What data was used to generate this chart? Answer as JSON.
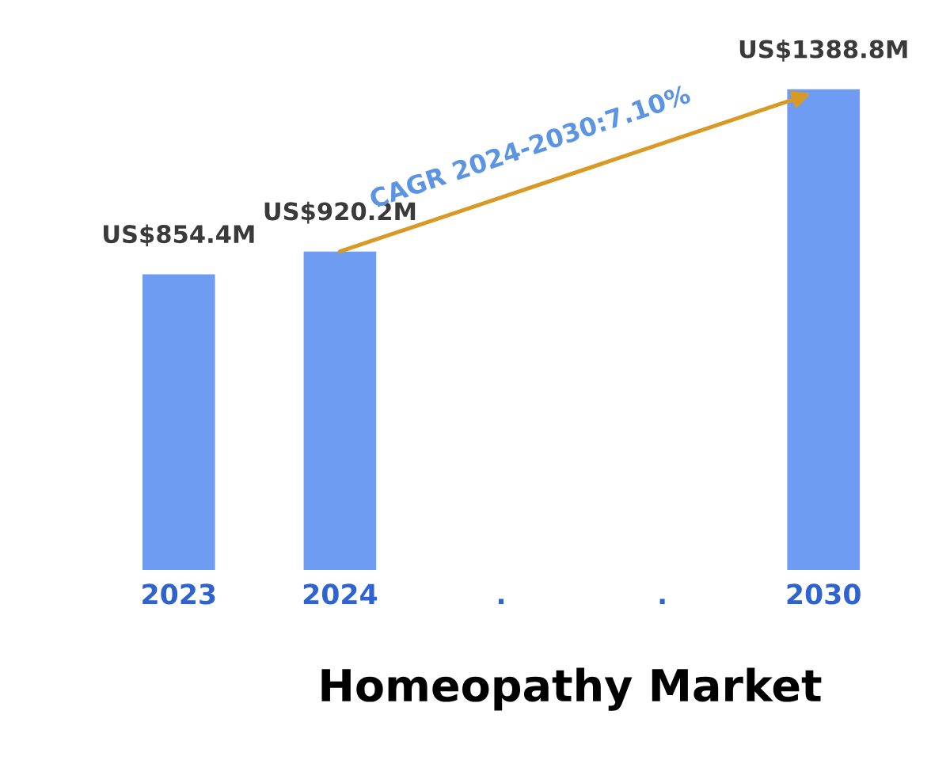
{
  "chart_data": {
    "type": "bar",
    "title": "Homeopathy Market",
    "categories": [
      "2023",
      "2024",
      ".",
      ".",
      "2030"
    ],
    "values": [
      854400000,
      920200000,
      null,
      null,
      1388800000
    ],
    "color": "#6f9cf3",
    "value_labels": [
      "US$854.4M",
      "US$920.2M",
      null,
      null,
      "US$1388.8M"
    ],
    "annotations": [
      "CAGR 2024-2030:7.10%"
    ],
    "tick_labels": "x"
  }
}
